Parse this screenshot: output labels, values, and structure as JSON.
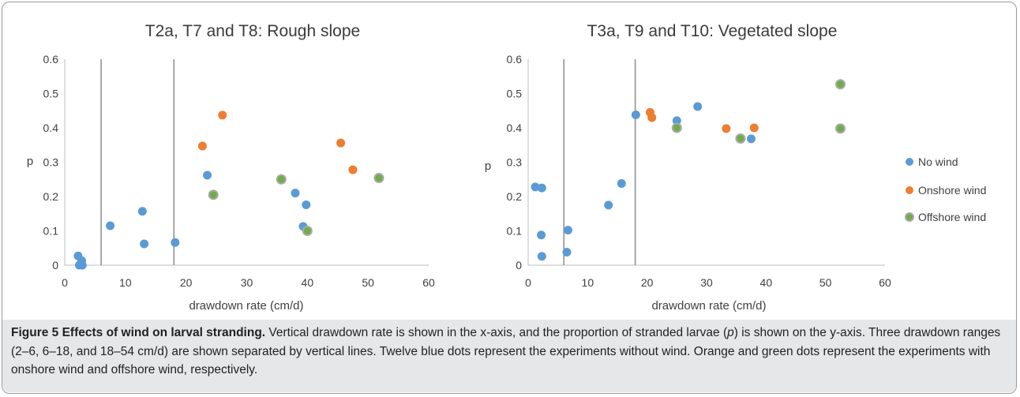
{
  "chart_data": [
    {
      "type": "scatter",
      "title": "T2a, T7 and T8: Rough slope",
      "xlabel": "drawdown rate (cm/d)",
      "ylabel": "p",
      "xlim": [
        0,
        60
      ],
      "ylim": [
        0,
        0.6
      ],
      "xticks": [
        "0",
        "10",
        "20",
        "30",
        "40",
        "50",
        "60"
      ],
      "yticks": [
        "0",
        "0.1",
        "0.2",
        "0.3",
        "0.4",
        "0.5",
        "0.6"
      ],
      "grid": false,
      "vlines": [
        6,
        18
      ],
      "series": [
        {
          "name": "No wind",
          "color": "#5b9bd5",
          "points": [
            [
              2.2,
              0.027
            ],
            [
              2.4,
              0.0
            ],
            [
              2.8,
              0.013
            ],
            [
              2.9,
              0.0
            ],
            [
              7.5,
              0.115
            ],
            [
              12.8,
              0.157
            ],
            [
              13.1,
              0.062
            ],
            [
              18.2,
              0.066
            ],
            [
              23.5,
              0.262
            ],
            [
              38,
              0.21
            ],
            [
              39.3,
              0.113
            ],
            [
              39.8,
              0.176
            ]
          ]
        },
        {
          "name": "Onshore wind",
          "color": "#ed7d31",
          "points": [
            [
              22.7,
              0.347
            ],
            [
              26,
              0.437
            ],
            [
              45.5,
              0.356
            ],
            [
              47.5,
              0.278
            ]
          ]
        },
        {
          "name": "Offshore wind",
          "color": "#70ad47",
          "points": [
            [
              24.5,
              0.205
            ],
            [
              35.7,
              0.25
            ],
            [
              40,
              0.1
            ],
            [
              51.8,
              0.254
            ]
          ]
        }
      ]
    },
    {
      "type": "scatter",
      "title": "T3a, T9 and T10: Vegetated slope",
      "xlabel": "drawdown rate (cm/d)",
      "ylabel": "p",
      "xlim": [
        0,
        60
      ],
      "ylim": [
        0,
        0.6
      ],
      "xticks": [
        "0",
        "10",
        "20",
        "30",
        "40",
        "50",
        "60"
      ],
      "yticks": [
        "0",
        "0.1",
        "0.2",
        "0.3",
        "0.4",
        "0.5",
        "0.6"
      ],
      "grid": false,
      "vlines": [
        6,
        18
      ],
      "legend": "right",
      "series": [
        {
          "name": "No wind",
          "color": "#5b9bd5",
          "points": [
            [
              1.2,
              0.228
            ],
            [
              2.3,
              0.225
            ],
            [
              2.2,
              0.088
            ],
            [
              2.3,
              0.026
            ],
            [
              6.7,
              0.102
            ],
            [
              6.5,
              0.038
            ],
            [
              13.5,
              0.175
            ],
            [
              15.7,
              0.238
            ],
            [
              18.1,
              0.438
            ],
            [
              25,
              0.421
            ],
            [
              28.5,
              0.462
            ],
            [
              37.5,
              0.368
            ]
          ]
        },
        {
          "name": "Onshore wind",
          "color": "#ed7d31",
          "points": [
            [
              20.5,
              0.445
            ],
            [
              20.8,
              0.43
            ],
            [
              33.3,
              0.398
            ],
            [
              38,
              0.4
            ]
          ]
        },
        {
          "name": "Offshore wind",
          "color": "#70ad47",
          "points": [
            [
              25,
              0.4
            ],
            [
              35.7,
              0.369
            ],
            [
              52.5,
              0.527
            ],
            [
              52.5,
              0.398
            ]
          ]
        }
      ]
    }
  ],
  "caption": {
    "bold": "Figure 5 Effects of wind on larval stranding.",
    "text": " Vertical drawdown rate is shown in the x-axis, and the proportion of stranded larvae (",
    "italic": "p",
    "text2": ") is shown on the y-axis. Three drawdown ranges (2–6, 6–18, and 18–54 cm/d) are shown separated by vertical lines. Twelve blue dots represent the experiments without wind. Orange and green dots represent the experiments with onshore wind and offshore wind, respectively."
  }
}
